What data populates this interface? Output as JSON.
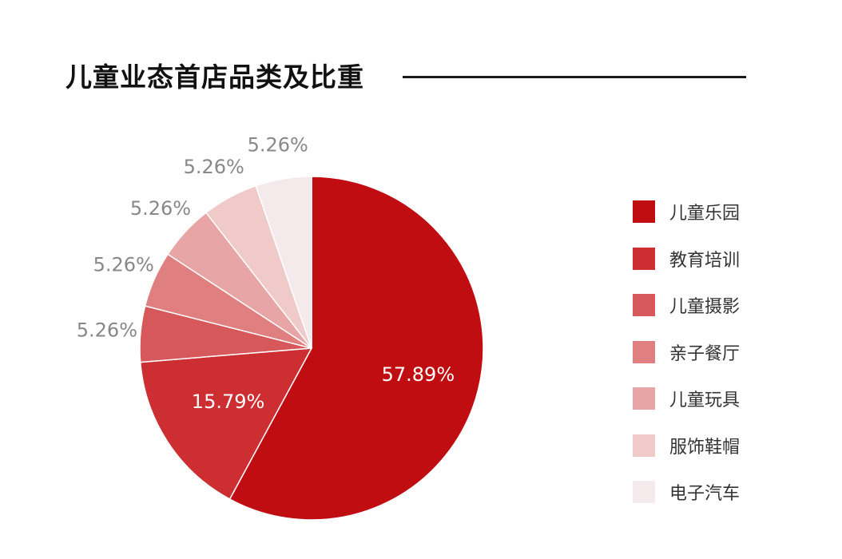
{
  "title": "儿童业态首店品类及比重",
  "chart_data": {
    "type": "pie",
    "title": "儿童业态首店品类及比重",
    "legend_position": "right",
    "slices": [
      {
        "label": "儿童乐园",
        "value": 57.89,
        "display": "57.89%",
        "color": "#c00d12"
      },
      {
        "label": "教育培训",
        "value": 15.79,
        "display": "15.79%",
        "color": "#cc2e32"
      },
      {
        "label": "儿童摄影",
        "value": 5.26,
        "display": "5.26%",
        "color": "#d6585b"
      },
      {
        "label": "亲子餐厅",
        "value": 5.26,
        "display": "5.26%",
        "color": "#df7f80"
      },
      {
        "label": "儿童玩具",
        "value": 5.26,
        "display": "5.26%",
        "color": "#e8a5a6"
      },
      {
        "label": "服饰鞋帽",
        "value": 5.26,
        "display": "5.26%",
        "color": "#f0c9c9"
      },
      {
        "label": "电子汽车",
        "value": 5.26,
        "display": "5.26%",
        "color": "#f5eaeb"
      }
    ]
  }
}
